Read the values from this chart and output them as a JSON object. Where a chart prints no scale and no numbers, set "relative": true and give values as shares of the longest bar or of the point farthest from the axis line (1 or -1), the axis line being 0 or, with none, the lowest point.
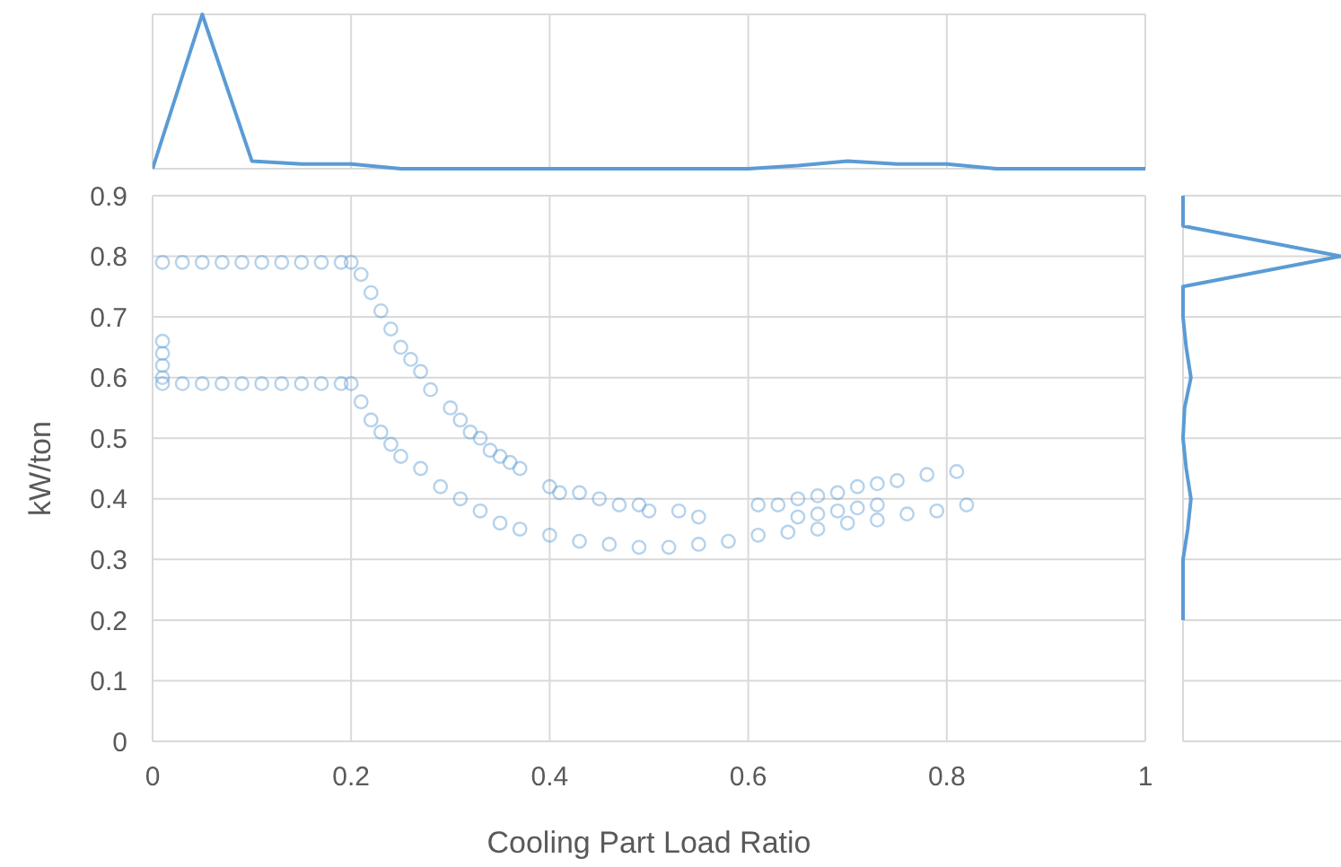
{
  "chart_data": [
    {
      "type": "line",
      "relative": true,
      "x": [
        0,
        0.05,
        0.1,
        0.15,
        0.2,
        0.25,
        0.3,
        0.35,
        0.4,
        0.45,
        0.5,
        0.55,
        0.6,
        0.65,
        0.7,
        0.75,
        0.8,
        0.85,
        0.9,
        0.95,
        1
      ],
      "series": [
        {
          "color": "#5b9bd5",
          "values": [
            0,
            1,
            0.05,
            0.03,
            0.03,
            0,
            0,
            0,
            0,
            0,
            0,
            0,
            0,
            0.02,
            0.05,
            0.03,
            0.03,
            0,
            0,
            0,
            0
          ]
        }
      ],
      "xlim": [
        0,
        1
      ],
      "xticks": [
        0,
        0.2,
        0.4,
        0.6,
        0.8,
        1
      ],
      "tick_labels": false,
      "grid": "x",
      "marker": "none",
      "line_style": "solid",
      "legend": false
    },
    {
      "type": "scatter",
      "xlabel": "Cooling Part Load Ratio",
      "ylabel": "kW/ton",
      "xlim": [
        0,
        1
      ],
      "xticks": [
        0,
        0.2,
        0.4,
        0.6,
        0.8,
        1
      ],
      "ylim": [
        0,
        0.9
      ],
      "yticks": [
        0,
        0.1,
        0.2,
        0.3,
        0.4,
        0.5,
        0.6,
        0.7,
        0.8,
        0.9
      ],
      "grid": true,
      "marker": "circle",
      "legend": false,
      "series": [
        {
          "color": "#5b9bd5",
          "x": [
            0.01,
            0.03,
            0.05,
            0.07,
            0.09,
            0.11,
            0.13,
            0.15,
            0.17,
            0.19,
            0.01,
            0.03,
            0.05,
            0.07,
            0.09,
            0.11,
            0.13,
            0.15,
            0.17,
            0.19,
            0.01,
            0.01,
            0.01,
            0.01,
            0.2,
            0.21,
            0.22,
            0.23,
            0.24,
            0.25,
            0.26,
            0.27,
            0.28,
            0.3,
            0.31,
            0.32,
            0.33,
            0.34,
            0.35,
            0.36,
            0.37,
            0.4,
            0.41,
            0.43,
            0.45,
            0.47,
            0.49,
            0.5,
            0.53,
            0.55,
            0.2,
            0.21,
            0.22,
            0.23,
            0.24,
            0.25,
            0.27,
            0.29,
            0.31,
            0.33,
            0.35,
            0.37,
            0.4,
            0.43,
            0.46,
            0.49,
            0.52,
            0.55,
            0.58,
            0.61,
            0.64,
            0.67,
            0.7,
            0.73,
            0.76,
            0.79,
            0.82,
            0.61,
            0.63,
            0.65,
            0.67,
            0.69,
            0.71,
            0.73,
            0.75,
            0.78,
            0.81,
            0.65,
            0.67,
            0.69,
            0.71,
            0.73
          ],
          "values": [
            0.79,
            0.79,
            0.79,
            0.79,
            0.79,
            0.79,
            0.79,
            0.79,
            0.79,
            0.79,
            0.59,
            0.59,
            0.59,
            0.59,
            0.59,
            0.59,
            0.59,
            0.59,
            0.59,
            0.59,
            0.66,
            0.64,
            0.62,
            0.6,
            0.79,
            0.77,
            0.74,
            0.71,
            0.68,
            0.65,
            0.63,
            0.61,
            0.58,
            0.55,
            0.53,
            0.51,
            0.5,
            0.48,
            0.47,
            0.46,
            0.45,
            0.42,
            0.41,
            0.41,
            0.4,
            0.39,
            0.39,
            0.38,
            0.38,
            0.37,
            0.59,
            0.56,
            0.53,
            0.51,
            0.49,
            0.47,
            0.45,
            0.42,
            0.4,
            0.38,
            0.36,
            0.35,
            0.34,
            0.33,
            0.325,
            0.32,
            0.32,
            0.325,
            0.33,
            0.34,
            0.345,
            0.35,
            0.36,
            0.365,
            0.375,
            0.38,
            0.39,
            0.39,
            0.39,
            0.4,
            0.405,
            0.41,
            0.42,
            0.425,
            0.43,
            0.44,
            0.445,
            0.37,
            0.375,
            0.38,
            0.385,
            0.39
          ]
        }
      ]
    },
    {
      "type": "line",
      "relative": true,
      "orientation": "horizontal",
      "x": [
        0.2,
        0.25,
        0.3,
        0.35,
        0.4,
        0.45,
        0.5,
        0.55,
        0.6,
        0.65,
        0.7,
        0.75,
        0.8,
        0.85,
        0.9
      ],
      "series": [
        {
          "color": "#5b9bd5",
          "values": [
            0,
            0,
            0,
            0.03,
            0.05,
            0.02,
            0,
            0.01,
            0.05,
            0.02,
            0,
            0,
            1,
            0,
            0
          ]
        }
      ],
      "ylim": [
        0,
        0.9
      ],
      "yticks": [
        0,
        0.1,
        0.2,
        0.3,
        0.4,
        0.5,
        0.6,
        0.7,
        0.8,
        0.9
      ],
      "tick_labels": false,
      "grid": "y",
      "marker": "none",
      "line_style": "solid",
      "legend": false
    }
  ]
}
